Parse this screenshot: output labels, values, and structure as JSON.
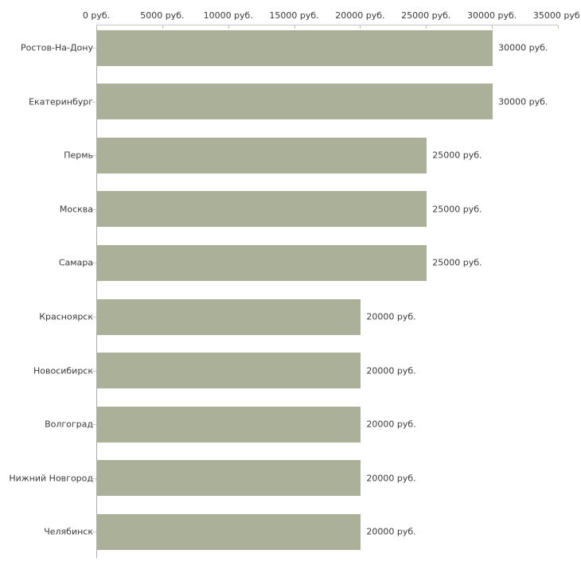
{
  "chart_data": {
    "type": "bar",
    "orientation": "horizontal",
    "title": "",
    "xlabel": "",
    "ylabel": "",
    "unit": "руб.",
    "xlim": [
      0,
      35000
    ],
    "x_tick_step": 5000,
    "x_tick_labels": [
      "0 руб.",
      "5000 руб.",
      "10000 руб.",
      "15000 руб.",
      "20000 руб.",
      "25000 руб.",
      "30000 руб.",
      "35000 руб."
    ],
    "categories": [
      "Ростов-На-Дону",
      "Екатеринбург",
      "Пермь",
      "Москва",
      "Самара",
      "Красноярск",
      "Новосибирск",
      "Волгоград",
      "Нижний Новгород",
      "Челябинск"
    ],
    "values": [
      30000,
      30000,
      25000,
      25000,
      25000,
      20000,
      20000,
      20000,
      20000,
      20000
    ],
    "value_labels": [
      "30000 руб.",
      "30000 руб.",
      "25000 руб.",
      "25000 руб.",
      "25000 руб.",
      "20000 руб.",
      "20000 руб.",
      "20000 руб.",
      "20000 руб.",
      "20000 руб."
    ],
    "legend": null,
    "grid": false,
    "colors": {
      "bar": "#abb198",
      "axis_horizontal": "#c6c6c6",
      "axis_vertical": "#adadad",
      "x_tick": "#c2c5a0",
      "y_tick": "#ccd0b4",
      "text": "#3a3a3a",
      "background": "#ffffff"
    }
  }
}
